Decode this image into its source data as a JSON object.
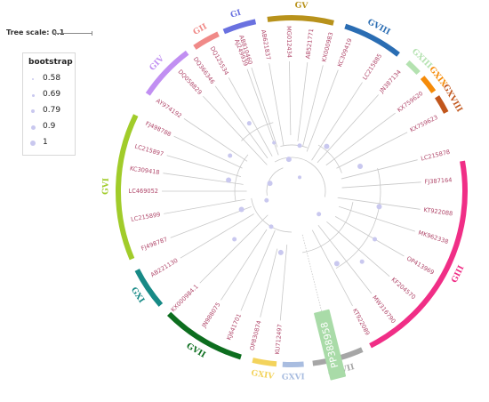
{
  "tree_scale": {
    "label": "Tree scale: 0.1"
  },
  "legend": {
    "title": "bootstrap",
    "items": [
      {
        "value": "0.58",
        "dot": 2
      },
      {
        "value": "0.69",
        "dot": 3
      },
      {
        "value": "0.79",
        "dot": 4
      },
      {
        "value": "0.9",
        "dot": 5
      },
      {
        "value": "1",
        "dot": 6
      }
    ]
  },
  "colors": {
    "leaf_label": "#b0476a",
    "branch": "#c8c8c8",
    "bootstrap_node": "#c9c8ef",
    "highlight_box": "#a9dba8",
    "highlight_text": "#ffffff"
  },
  "highlight": {
    "leaf": "PP388958"
  },
  "leaves": [
    "AB810460",
    "AB621837",
    "MG012434",
    "AB521771",
    "KX000983",
    "KC309419",
    "LC215885",
    "JN387134",
    "KX759620",
    "KX759623",
    "LC215878",
    "FJ387164",
    "KT922088",
    "MK962338",
    "OP413969",
    "KF204570",
    "MW316790",
    "KT922089",
    "PP388958",
    "KU712497",
    "OP830874",
    "KJ641701",
    "JN988075",
    "KX000984.1",
    "AB221130",
    "FJ498787",
    "LC215899",
    "LC469052",
    "KC309418",
    "LC215897",
    "FJ498788",
    "AY974192",
    "DQ058829",
    "DQ366346",
    "DQ125534",
    "AJ249939"
  ],
  "genotypes": [
    {
      "label": "GI",
      "color": "#6a71e0"
    },
    {
      "label": "GII",
      "color": "#f08a88"
    },
    {
      "label": "GIV",
      "color": "#c18ff2"
    },
    {
      "label": "GVI",
      "color": "#a1cc2a"
    },
    {
      "label": "GXI",
      "color": "#178a86"
    },
    {
      "label": "GVII",
      "color": "#0d6e1f"
    },
    {
      "label": "GXIV",
      "color": "#f3d35c"
    },
    {
      "label": "GXVI",
      "color": "#a9bde0"
    },
    {
      "label": "GXVII",
      "color": "#a6a6a6"
    },
    {
      "label": "GIII",
      "color": "#f02e86"
    },
    {
      "label": "GXVIII",
      "color": "#c1561c"
    },
    {
      "label": "GXIX",
      "color": "#f58b08"
    },
    {
      "label": "GXIII",
      "color": "#b4e2b0"
    },
    {
      "label": "GVIII",
      "color": "#2a6db3"
    },
    {
      "label": "GV",
      "color": "#b8921b"
    }
  ]
}
